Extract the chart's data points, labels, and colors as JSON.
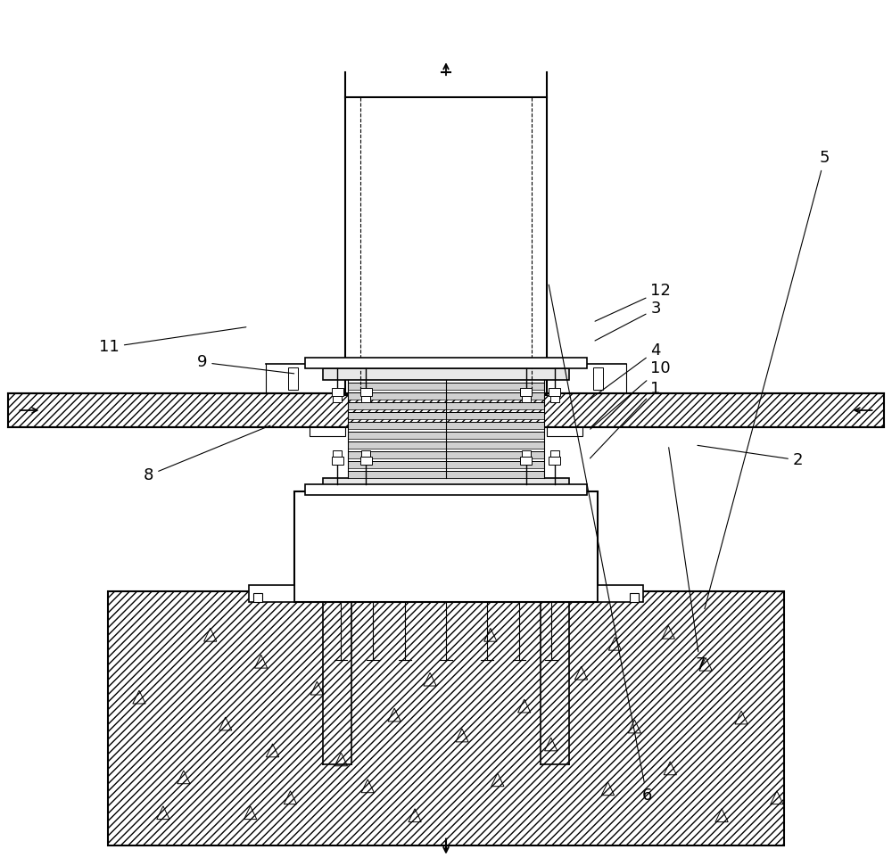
{
  "bg_color": "#ffffff",
  "line_color": "#000000",
  "figsize": [
    10.0,
    9.71
  ],
  "labels": {
    "1": [
      7.3,
      5.35,
      6.6,
      4.55
    ],
    "2": [
      8.9,
      4.55,
      7.8,
      4.72
    ],
    "3": [
      7.3,
      6.25,
      6.65,
      5.88
    ],
    "4": [
      7.3,
      5.78,
      6.6,
      5.22
    ],
    "5": [
      9.2,
      7.95,
      7.9,
      2.85
    ],
    "6": [
      7.2,
      0.78,
      6.15,
      6.55
    ],
    "7": [
      7.8,
      2.25,
      7.5,
      4.72
    ],
    "8": [
      1.6,
      4.38,
      3.05,
      4.95
    ],
    "9": [
      2.2,
      5.65,
      3.32,
      5.52
    ],
    "10": [
      7.3,
      5.58,
      6.6,
      4.88
    ],
    "11": [
      1.1,
      5.82,
      2.78,
      6.05
    ],
    "12": [
      7.3,
      6.45,
      6.65,
      6.1
    ]
  }
}
